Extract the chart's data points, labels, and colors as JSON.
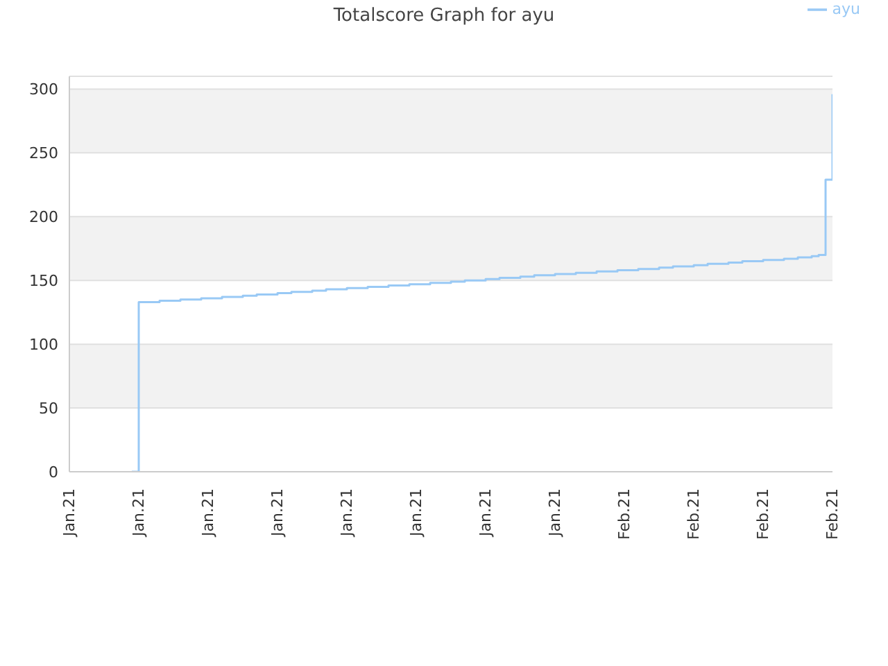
{
  "chart_data": {
    "type": "step",
    "title": "Totalscore Graph for ayu",
    "categories": [
      "Jan.21",
      null,
      null,
      null,
      null,
      null,
      null,
      null,
      null,
      null,
      "Jan.21",
      null,
      null,
      null,
      null,
      null,
      null,
      null,
      null,
      null,
      "Jan.21",
      null,
      null,
      null,
      null,
      null,
      null,
      null,
      null,
      null,
      "Jan.21",
      null,
      null,
      null,
      null,
      null,
      null,
      null,
      null,
      null,
      "Jan.21",
      null,
      null,
      null,
      null,
      null,
      null,
      null,
      null,
      null,
      "Jan.21",
      null,
      null,
      null,
      null,
      null,
      null,
      null,
      null,
      null,
      "Jan.21",
      null,
      null,
      null,
      null,
      null,
      null,
      null,
      null,
      null,
      "Jan.21",
      null,
      null,
      null,
      null,
      null,
      null,
      null,
      null,
      null,
      "Feb.21",
      null,
      null,
      null,
      null,
      null,
      null,
      null,
      null,
      null,
      "Feb.21",
      null,
      null,
      null,
      null,
      null,
      null,
      null,
      null,
      null,
      "Feb.21",
      null,
      null,
      null,
      null,
      null,
      null,
      null,
      null,
      null,
      "Feb.21"
    ],
    "series": [
      {
        "name": "ayu",
        "color": "#99c9f5",
        "values": [
          null,
          null,
          null,
          null,
          null,
          null,
          null,
          null,
          null,
          0,
          133,
          133,
          133,
          134,
          134,
          134,
          135,
          135,
          135,
          136,
          136,
          136,
          137,
          137,
          137,
          138,
          138,
          139,
          139,
          139,
          140,
          140,
          141,
          141,
          141,
          142,
          142,
          143,
          143,
          143,
          144,
          144,
          144,
          145,
          145,
          145,
          146,
          146,
          146,
          147,
          147,
          147,
          148,
          148,
          148,
          149,
          149,
          150,
          150,
          150,
          151,
          151,
          152,
          152,
          152,
          153,
          153,
          154,
          154,
          154,
          155,
          155,
          155,
          156,
          156,
          156,
          157,
          157,
          157,
          158,
          158,
          158,
          159,
          159,
          159,
          160,
          160,
          161,
          161,
          161,
          162,
          162,
          163,
          163,
          163,
          164,
          164,
          165,
          165,
          165,
          166,
          166,
          166,
          167,
          167,
          168,
          168,
          169,
          170,
          229,
          296
        ]
      }
    ],
    "ylim": [
      0,
      310
    ],
    "yticks": [
      0,
      50,
      100,
      150,
      200,
      250,
      300
    ],
    "grid": "y",
    "legend": "top right",
    "marker": "none",
    "line_style": "solid"
  }
}
